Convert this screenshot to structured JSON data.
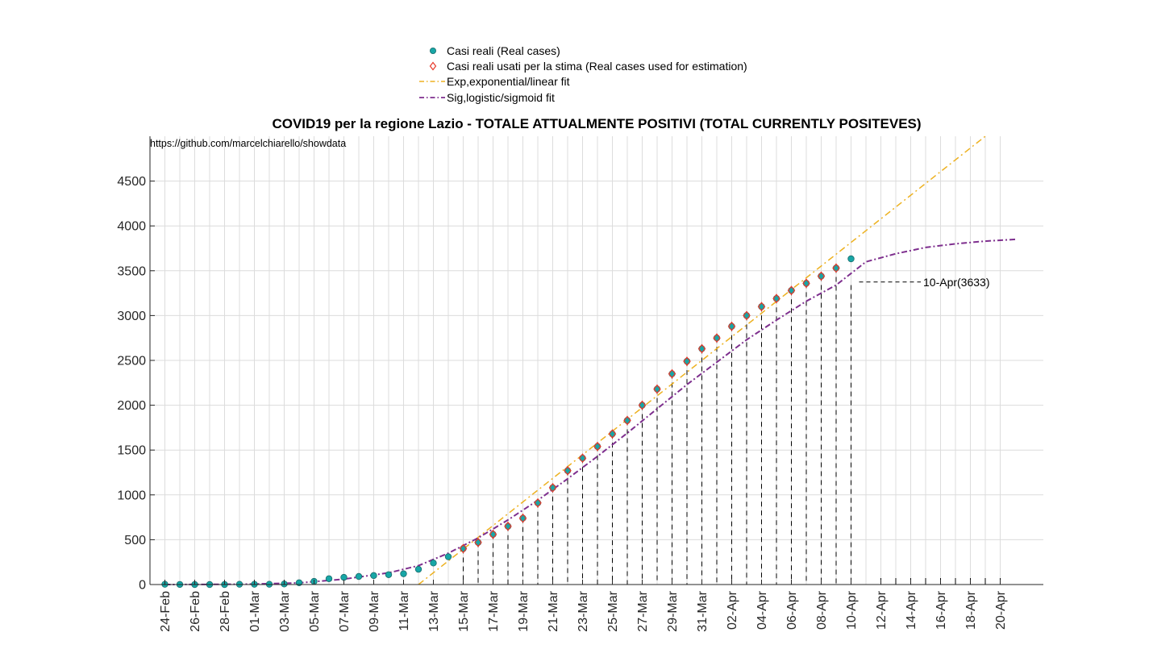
{
  "chart_data": {
    "type": "line",
    "title": "COVID19 per la regione Lazio - TOTALE ATTUALMENTE POSITIVI (TOTAL CURRENTLY POSITEVES)",
    "source_note": "https://github.com/marcelchiarello/showdata",
    "xlabel": "",
    "ylabel": "",
    "ylim": [
      0,
      5000
    ],
    "y_ticks": [
      0,
      500,
      1000,
      1500,
      2000,
      2500,
      3000,
      3500,
      4000,
      4500
    ],
    "x_tick_labels": [
      "24-Feb",
      "26-Feb",
      "28-Feb",
      "01-Mar",
      "03-Mar",
      "05-Mar",
      "07-Mar",
      "09-Mar",
      "11-Mar",
      "13-Mar",
      "15-Mar",
      "17-Mar",
      "19-Mar",
      "21-Mar",
      "23-Mar",
      "25-Mar",
      "27-Mar",
      "29-Mar",
      "31-Mar",
      "02-Apr",
      "04-Apr",
      "06-Apr",
      "08-Apr",
      "10-Apr",
      "12-Apr",
      "14-Apr",
      "16-Apr",
      "18-Apr",
      "20-Apr"
    ],
    "grid": true,
    "legend_position": "top-center",
    "legend": [
      {
        "label": "Casi reali (Real cases)",
        "marker": "filled-circle",
        "color": "#17a6a6"
      },
      {
        "label": "Casi reali usati per la stima (Real cases used for estimation)",
        "marker": "open-diamond",
        "color": "#e8392a"
      },
      {
        "label": "Exp,exponential/linear fit",
        "style": "dash-dot",
        "color": "#edb120"
      },
      {
        "label": "Sig,logistic/sigmoid fit",
        "style": "dash-dot",
        "color": "#7e2f8e"
      }
    ],
    "series": [
      {
        "name": "Casi reali (Real cases)",
        "x": [
          "24-Feb",
          "25-Feb",
          "26-Feb",
          "27-Feb",
          "28-Feb",
          "29-Feb",
          "01-Mar",
          "02-Mar",
          "03-Mar",
          "04-Mar",
          "05-Mar",
          "06-Mar",
          "07-Mar",
          "08-Mar",
          "09-Mar",
          "10-Mar",
          "11-Mar",
          "12-Mar",
          "13-Mar",
          "14-Mar",
          "15-Mar",
          "16-Mar",
          "17-Mar",
          "18-Mar",
          "19-Mar",
          "20-Mar",
          "21-Mar",
          "22-Mar",
          "23-Mar",
          "24-Mar",
          "25-Mar",
          "26-Mar",
          "27-Mar",
          "28-Mar",
          "29-Mar",
          "30-Mar",
          "31-Mar",
          "01-Apr",
          "02-Apr",
          "03-Apr",
          "04-Apr",
          "05-Apr",
          "06-Apr",
          "07-Apr",
          "08-Apr",
          "09-Apr",
          "10-Apr"
        ],
        "y": [
          3,
          1,
          0,
          0,
          0,
          3,
          3,
          3,
          6,
          20,
          35,
          65,
          80,
          90,
          100,
          110,
          120,
          170,
          240,
          310,
          400,
          470,
          560,
          650,
          740,
          910,
          1080,
          1270,
          1410,
          1540,
          1680,
          1830,
          2000,
          2180,
          2350,
          2490,
          2630,
          2750,
          2880,
          3000,
          3100,
          3190,
          3280,
          3360,
          3440,
          3530,
          3633
        ]
      },
      {
        "name": "Casi reali usati per la stima (Real cases used for estimation)",
        "x": [
          "15-Mar",
          "16-Mar",
          "17-Mar",
          "18-Mar",
          "19-Mar",
          "20-Mar",
          "21-Mar",
          "22-Mar",
          "23-Mar",
          "24-Mar",
          "25-Mar",
          "26-Mar",
          "27-Mar",
          "28-Mar",
          "29-Mar",
          "30-Mar",
          "31-Mar",
          "01-Apr",
          "02-Apr",
          "03-Apr",
          "04-Apr",
          "05-Apr",
          "06-Apr",
          "07-Apr",
          "08-Apr",
          "09-Apr"
        ],
        "y": [
          400,
          470,
          560,
          650,
          740,
          910,
          1080,
          1270,
          1410,
          1540,
          1680,
          1830,
          2000,
          2180,
          2350,
          2490,
          2630,
          2750,
          2880,
          3000,
          3100,
          3190,
          3280,
          3360,
          3440,
          3530
        ]
      },
      {
        "name": "Exp,exponential/linear fit",
        "x": [
          "12-Mar",
          "19-Apr"
        ],
        "y": [
          0,
          5000
        ]
      },
      {
        "name": "Sig,logistic/sigmoid fit",
        "x": [
          "24-Feb",
          "27-Feb",
          "01-Mar",
          "04-Mar",
          "07-Mar",
          "10-Mar",
          "12-Mar",
          "14-Mar",
          "16-Mar",
          "18-Mar",
          "20-Mar",
          "22-Mar",
          "24-Mar",
          "26-Mar",
          "28-Mar",
          "30-Mar",
          "01-Apr",
          "03-Apr",
          "05-Apr",
          "07-Apr",
          "09-Apr",
          "11-Apr",
          "13-Apr",
          "15-Apr",
          "17-Apr",
          "19-Apr",
          "21-Apr"
        ],
        "y": [
          0,
          2,
          5,
          18,
          60,
          130,
          210,
          350,
          520,
          720,
          940,
          1180,
          1430,
          1690,
          1960,
          2230,
          2480,
          2730,
          2950,
          3160,
          3340,
          3600,
          3690,
          3760,
          3800,
          3830,
          3850
        ]
      }
    ],
    "annotations": [
      {
        "text": "10-Apr(3633)",
        "x": "10-Apr",
        "y": 3633
      }
    ]
  }
}
